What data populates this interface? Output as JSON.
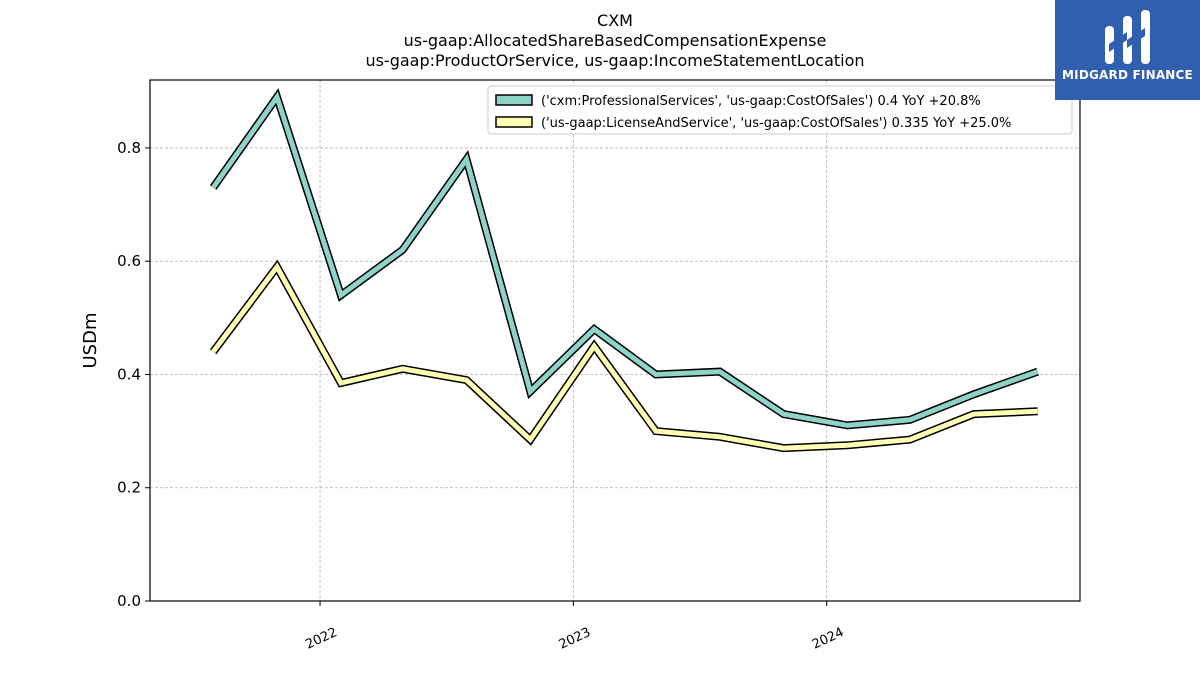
{
  "chart_data": {
    "type": "line",
    "title": [
      "CXM",
      "us-gaap:AllocatedShareBasedCompensationExpense",
      "us-gaap:ProductOrService, us-gaap:IncomeStatementLocation"
    ],
    "ylabel": "USDm",
    "xlabel": "",
    "ylim": [
      0,
      0.92
    ],
    "yticks": [
      0.0,
      0.2,
      0.4,
      0.6,
      0.8
    ],
    "ytick_labels": [
      "0.0",
      "0.2",
      "0.4",
      "0.6",
      "0.8"
    ],
    "xticks": [
      "2022-01-01",
      "2023-01-01",
      "2024-01-01"
    ],
    "xtick_labels": [
      "2022",
      "2023",
      "2024"
    ],
    "xlim": [
      "2021-05-01",
      "2024-12-31"
    ],
    "grid": true,
    "legend_position": "top-right",
    "x": [
      "2021-07-31",
      "2021-10-31",
      "2022-01-31",
      "2022-04-30",
      "2022-07-31",
      "2022-10-31",
      "2023-01-31",
      "2023-04-30",
      "2023-07-31",
      "2023-10-31",
      "2024-01-31",
      "2024-04-30",
      "2024-07-31",
      "2024-10-31"
    ],
    "series": [
      {
        "name": "('cxm:ProfessionalServices', 'us-gaap:CostOfSales') 0.4 YoY +20.8%",
        "color": "#8dd3c7",
        "values": [
          0.73,
          0.89,
          0.54,
          0.62,
          0.78,
          0.37,
          0.48,
          0.4,
          0.405,
          0.33,
          0.31,
          0.32,
          0.365,
          0.405
        ]
      },
      {
        "name": "('us-gaap:LicenseAndService', 'us-gaap:CostOfSales') 0.335 YoY +25.0%",
        "color": "#ffffb3",
        "values": [
          0.44,
          0.59,
          0.385,
          0.41,
          0.39,
          0.285,
          0.45,
          0.3,
          0.29,
          0.27,
          0.275,
          0.285,
          0.33,
          0.335
        ]
      }
    ]
  },
  "logo": {
    "text": "MIDGARD FINANCE"
  }
}
